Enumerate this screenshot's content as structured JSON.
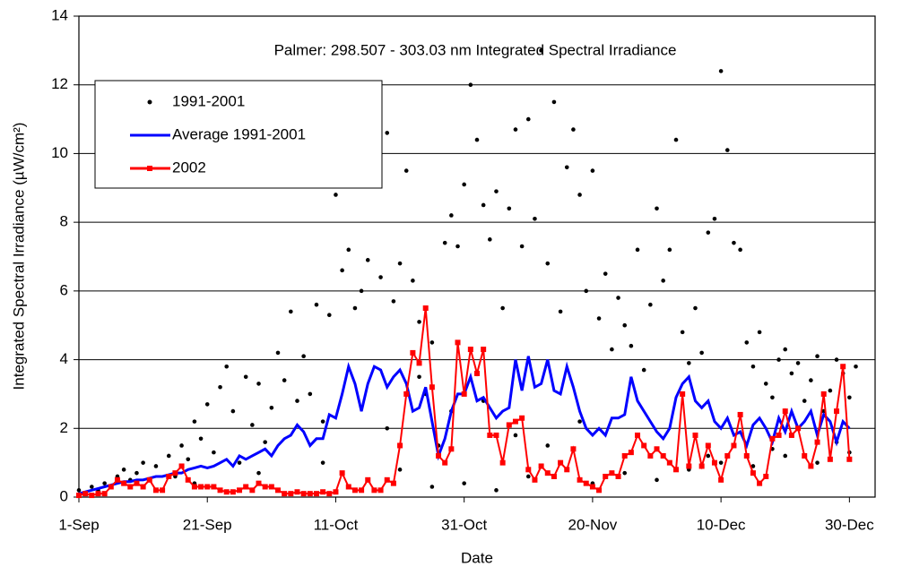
{
  "chart_data": {
    "type": "line",
    "title": "Palmer: 298.507 - 303.03 nm Integrated Spectral Irradiance",
    "x_label": "Date",
    "y_label": "Integrated Spectral Irradiance (µW/cm²)",
    "xlim": [
      0,
      124
    ],
    "ylim": [
      0,
      14
    ],
    "xticks": [
      {
        "value": 0,
        "label": "1-Sep"
      },
      {
        "value": 20,
        "label": "21-Sep"
      },
      {
        "value": 40,
        "label": "11-Oct"
      },
      {
        "value": 60,
        "label": "31-Oct"
      },
      {
        "value": 80,
        "label": "20-Nov"
      },
      {
        "value": 100,
        "label": "10-Dec"
      },
      {
        "value": 120,
        "label": "30-Dec"
      }
    ],
    "yticks": [
      0,
      2,
      4,
      6,
      8,
      10,
      12,
      14
    ],
    "grid": true,
    "x": [
      0,
      1,
      2,
      3,
      4,
      5,
      6,
      7,
      8,
      9,
      10,
      11,
      12,
      13,
      14,
      15,
      16,
      17,
      18,
      19,
      20,
      21,
      22,
      23,
      24,
      25,
      26,
      27,
      28,
      29,
      30,
      31,
      32,
      33,
      34,
      35,
      36,
      37,
      38,
      39,
      40,
      41,
      42,
      43,
      44,
      45,
      46,
      47,
      48,
      49,
      50,
      51,
      52,
      53,
      54,
      55,
      56,
      57,
      58,
      59,
      60,
      61,
      62,
      63,
      64,
      65,
      66,
      67,
      68,
      69,
      70,
      71,
      72,
      73,
      74,
      75,
      76,
      77,
      78,
      79,
      80,
      81,
      82,
      83,
      84,
      85,
      86,
      87,
      88,
      89,
      90,
      91,
      92,
      93,
      94,
      95,
      96,
      97,
      98,
      99,
      100,
      101,
      102,
      103,
      104,
      105,
      106,
      107,
      108,
      109,
      110,
      111,
      112,
      113,
      114,
      115,
      116,
      117,
      118,
      119,
      120
    ],
    "series": [
      {
        "name": "1991-2001",
        "type": "scatter",
        "color": "#000000",
        "x": [
          0,
          1,
          2,
          3,
          4,
          5,
          6,
          7,
          8,
          9,
          10,
          12,
          14,
          15,
          16,
          17,
          18,
          19,
          20,
          21,
          22,
          23,
          24,
          25,
          26,
          27,
          28,
          29,
          30,
          31,
          32,
          33,
          34,
          35,
          36,
          37,
          38,
          39,
          40,
          41,
          42,
          43,
          44,
          45,
          46,
          47,
          48,
          49,
          50,
          51,
          52,
          53,
          54,
          55,
          56,
          57,
          58,
          59,
          60,
          61,
          62,
          63,
          64,
          65,
          66,
          67,
          68,
          69,
          70,
          71,
          72,
          73,
          74,
          75,
          76,
          77,
          78,
          79,
          80,
          81,
          82,
          83,
          84,
          85,
          86,
          87,
          88,
          89,
          90,
          91,
          92,
          93,
          94,
          95,
          96,
          97,
          98,
          99,
          100,
          101,
          102,
          103,
          104,
          105,
          106,
          107,
          108,
          109,
          110,
          111,
          112,
          113,
          114,
          115,
          116,
          117,
          118,
          119,
          120,
          121,
          45,
          50,
          55,
          60,
          65,
          70,
          75,
          80,
          85,
          90,
          95,
          100,
          105,
          110,
          115,
          120,
          48,
          58,
          68,
          78,
          88,
          98,
          108,
          118,
          38,
          28,
          18,
          53,
          63,
          73
        ],
        "values": [
          0.2,
          0.1,
          0.3,
          0.2,
          0.4,
          0.3,
          0.6,
          0.8,
          0.5,
          0.7,
          1.0,
          0.9,
          1.2,
          0.6,
          1.5,
          1.1,
          2.2,
          1.7,
          2.7,
          1.3,
          3.2,
          3.8,
          2.5,
          1.0,
          3.5,
          2.1,
          3.3,
          1.6,
          2.6,
          4.2,
          3.4,
          5.4,
          2.8,
          4.1,
          3.0,
          5.6,
          2.2,
          5.3,
          8.8,
          6.6,
          7.2,
          5.5,
          6.0,
          6.9,
          10.5,
          6.4,
          10.6,
          5.7,
          6.8,
          9.5,
          6.3,
          5.1,
          3.0,
          4.5,
          1.5,
          7.4,
          8.2,
          7.3,
          9.1,
          12.0,
          10.4,
          8.5,
          7.5,
          8.9,
          5.5,
          8.4,
          10.7,
          7.3,
          11.0,
          8.1,
          13.0,
          6.8,
          11.5,
          5.4,
          9.6,
          10.7,
          8.8,
          6.0,
          9.5,
          5.2,
          6.5,
          4.3,
          5.8,
          5.0,
          4.4,
          7.2,
          3.7,
          5.6,
          8.4,
          6.3,
          7.2,
          10.4,
          4.8,
          3.9,
          5.5,
          4.2,
          7.7,
          8.1,
          12.4,
          10.1,
          7.4,
          7.2,
          4.5,
          3.8,
          4.8,
          3.3,
          2.9,
          4.0,
          4.3,
          3.6,
          3.9,
          2.8,
          3.4,
          4.1,
          2.5,
          3.1,
          4.0,
          3.6,
          2.9,
          3.8,
          0.5,
          0.8,
          0.3,
          0.4,
          0.2,
          0.6,
          1.0,
          0.4,
          0.7,
          0.5,
          0.8,
          1.0,
          0.9,
          1.2,
          1.0,
          1.3,
          2.0,
          2.5,
          1.8,
          2.2,
          1.5,
          1.2,
          1.4,
          1.6,
          1.0,
          0.7,
          0.4,
          3.5,
          2.8,
          1.5
        ]
      },
      {
        "name": "Average 1991-2001",
        "type": "line",
        "color": "#0000ff",
        "marker": "none",
        "values": [
          0.1,
          0.15,
          0.2,
          0.25,
          0.3,
          0.35,
          0.4,
          0.45,
          0.45,
          0.5,
          0.5,
          0.55,
          0.6,
          0.6,
          0.65,
          0.7,
          0.7,
          0.8,
          0.85,
          0.9,
          0.85,
          0.9,
          1.0,
          1.1,
          0.9,
          1.2,
          1.1,
          1.2,
          1.3,
          1.4,
          1.2,
          1.5,
          1.7,
          1.8,
          2.1,
          1.9,
          1.5,
          1.7,
          1.7,
          2.4,
          2.3,
          3.0,
          3.8,
          3.3,
          2.5,
          3.3,
          3.8,
          3.7,
          3.2,
          3.5,
          3.7,
          3.3,
          2.5,
          2.6,
          3.2,
          2.2,
          1.2,
          1.7,
          2.5,
          3.0,
          3.0,
          3.5,
          2.8,
          2.9,
          2.6,
          2.3,
          2.5,
          2.6,
          4.0,
          3.1,
          4.1,
          3.2,
          3.3,
          4.0,
          3.1,
          3.0,
          3.8,
          3.2,
          2.5,
          2.0,
          1.8,
          2.0,
          1.8,
          2.3,
          2.3,
          2.4,
          3.5,
          2.8,
          2.5,
          2.2,
          1.9,
          1.7,
          2.0,
          2.9,
          3.3,
          3.5,
          2.8,
          2.6,
          2.8,
          2.2,
          2.0,
          2.3,
          1.8,
          1.9,
          1.5,
          2.1,
          2.3,
          2.0,
          1.6,
          2.3,
          1.9,
          2.5,
          2.0,
          2.2,
          2.5,
          1.8,
          2.4,
          2.2,
          1.6,
          2.2,
          2.0
        ]
      },
      {
        "name": "2002",
        "type": "line",
        "color": "#ff0000",
        "marker": "square",
        "values": [
          0.05,
          0.1,
          0.05,
          0.1,
          0.1,
          0.3,
          0.5,
          0.4,
          0.3,
          0.4,
          0.3,
          0.5,
          0.2,
          0.2,
          0.6,
          0.7,
          0.9,
          0.5,
          0.3,
          0.3,
          0.3,
          0.3,
          0.2,
          0.15,
          0.15,
          0.2,
          0.3,
          0.2,
          0.4,
          0.3,
          0.3,
          0.2,
          0.1,
          0.1,
          0.15,
          0.1,
          0.1,
          0.1,
          0.15,
          0.1,
          0.15,
          0.7,
          0.3,
          0.2,
          0.2,
          0.5,
          0.2,
          0.2,
          0.5,
          0.4,
          1.5,
          3.0,
          4.2,
          3.9,
          5.5,
          3.2,
          1.2,
          1.0,
          1.4,
          4.5,
          3.0,
          4.3,
          3.6,
          4.3,
          1.8,
          1.8,
          1.0,
          2.1,
          2.2,
          2.3,
          0.8,
          0.5,
          0.9,
          0.7,
          0.6,
          1.0,
          0.8,
          1.4,
          0.5,
          0.4,
          0.3,
          0.2,
          0.6,
          0.7,
          0.6,
          1.2,
          1.3,
          1.8,
          1.5,
          1.2,
          1.4,
          1.2,
          1.0,
          0.8,
          3.0,
          0.9,
          1.8,
          0.9,
          1.5,
          1.0,
          0.5,
          1.2,
          1.5,
          2.4,
          1.2,
          0.7,
          0.4,
          0.6,
          1.7,
          1.8,
          2.5,
          1.8,
          2.0,
          1.2,
          0.9,
          1.6,
          3.0,
          1.1,
          2.5,
          3.8,
          1.1
        ]
      }
    ]
  }
}
